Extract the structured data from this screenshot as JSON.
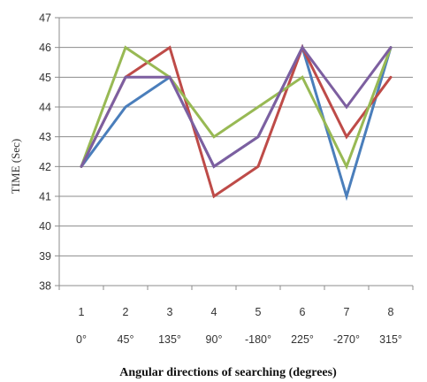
{
  "chart_data": {
    "type": "line",
    "xlabel": "Angular directions of searching (degrees)",
    "ylabel": "TIME (Sec)",
    "categories": [
      "1",
      "2",
      "3",
      "4",
      "5",
      "6",
      "7",
      "8"
    ],
    "category_sublabels": [
      "0°",
      "45°",
      "135°",
      "90°",
      "-180°",
      "225°",
      "-270°",
      "315°"
    ],
    "ylim": [
      38,
      47
    ],
    "yticks": [
      "38",
      "39",
      "40",
      "41",
      "42",
      "43",
      "44",
      "45",
      "46",
      "47"
    ],
    "grid": true,
    "series": [
      {
        "color": "#4a7ebb",
        "values": [
          42,
          44,
          45,
          42,
          43,
          46,
          41,
          46
        ]
      },
      {
        "color": "#be4b48",
        "values": [
          42,
          45,
          46,
          41,
          42,
          46,
          43,
          45
        ]
      },
      {
        "color": "#98b954",
        "values": [
          42,
          46,
          45,
          43,
          44,
          45,
          42,
          46
        ]
      },
      {
        "color": "#7d5fa0",
        "values": [
          42,
          45,
          45,
          42,
          43,
          46,
          44,
          46
        ]
      }
    ]
  }
}
